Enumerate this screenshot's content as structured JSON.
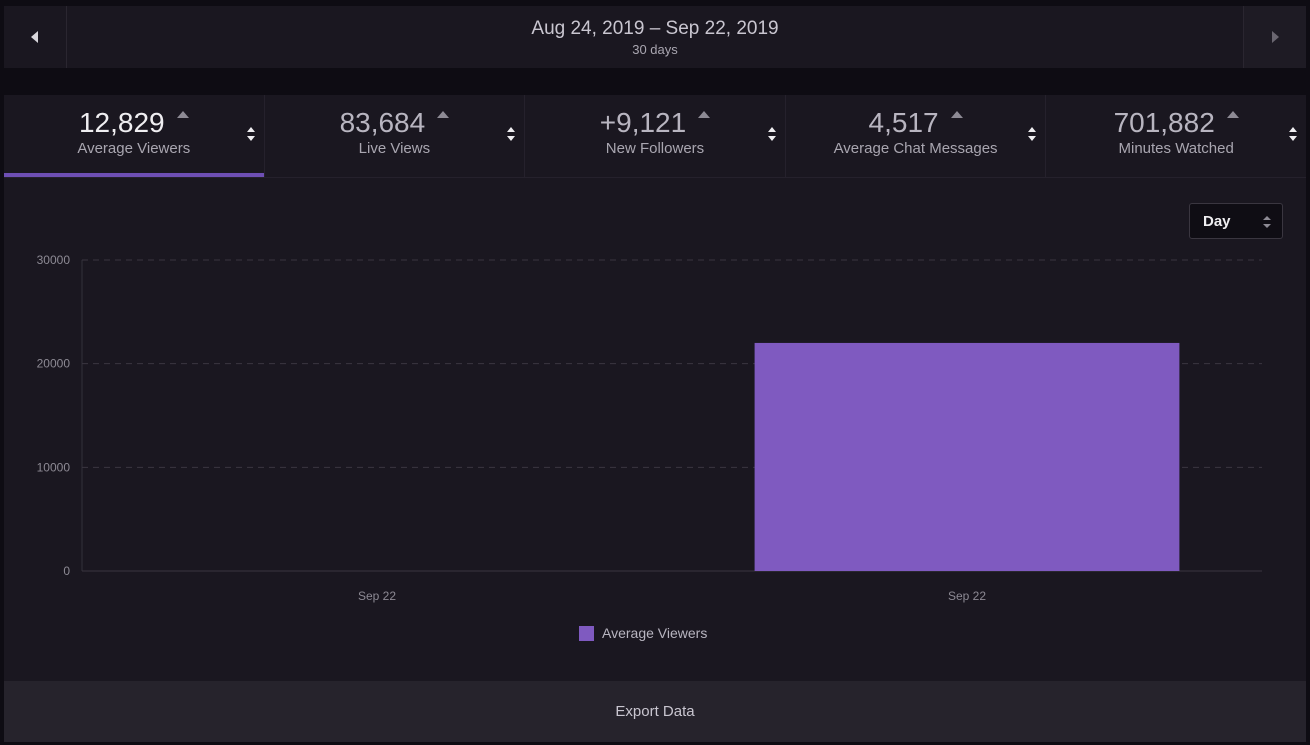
{
  "date_range": {
    "title": "Aug 24, 2019 – Sep 22, 2019",
    "subtitle": "30 days",
    "prev_icon": "caret-left-icon",
    "next_icon": "caret-right-icon"
  },
  "stats": [
    {
      "value": "12,829",
      "label": "Average Viewers",
      "active": true
    },
    {
      "value": "83,684",
      "label": "Live Views",
      "active": false
    },
    {
      "value": "+9,121",
      "label": "New Followers",
      "active": false
    },
    {
      "value": "4,517",
      "label": "Average Chat Messages",
      "active": false
    },
    {
      "value": "701,882",
      "label": "Minutes Watched",
      "active": false
    }
  ],
  "interval_select": {
    "value": "Day"
  },
  "chart_data": {
    "type": "bar",
    "categories": [
      "Sep 22",
      "Sep 22"
    ],
    "series": [
      {
        "name": "Average Viewers",
        "values": [
          0,
          22000
        ],
        "color": "#7f5ac0"
      }
    ],
    "yticks": [
      "30000",
      "20000",
      "10000",
      "0"
    ],
    "ylim": [
      0,
      30000
    ],
    "grid": true,
    "legend": "bottom-center"
  },
  "footer": {
    "export_label": "Export Data"
  },
  "colors": {
    "accent": "#7f5ac0",
    "active_underline": "#6e4fb4"
  }
}
